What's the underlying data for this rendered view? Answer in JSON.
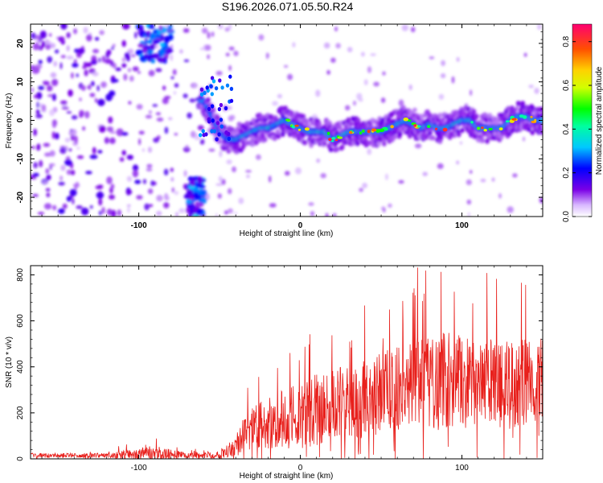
{
  "figure": {
    "title": "S196.2026.071.05.50.R24"
  },
  "chart_data": [
    {
      "type": "heatmap",
      "title": "S196.2026.071.05.50.R24",
      "xlabel": "Height of straight line (km)",
      "ylabel": "Frequency (Hz)",
      "xlim": [
        -167,
        150
      ],
      "ylim": [
        -25,
        25
      ],
      "xticks": [
        -100,
        0,
        100
      ],
      "yticks": [
        -20,
        -10,
        0,
        10,
        20
      ],
      "colorbar": {
        "label": "Normalized spectral amplitude",
        "range": [
          0.0,
          0.88
        ],
        "ticks": [
          0.0,
          0.2,
          0.4,
          0.6,
          0.8
        ]
      },
      "ridge": {
        "description": "frequency ridge (center of strong amplitude band)",
        "x": [
          -60,
          -55,
          -50,
          -45,
          -40,
          -35,
          -30,
          -25,
          -20,
          -15,
          -10,
          -5,
          0,
          5,
          10,
          15,
          20,
          25,
          30,
          35,
          40,
          45,
          50,
          55,
          60,
          65,
          70,
          75,
          80,
          85,
          90,
          95,
          100,
          105,
          110,
          115,
          120,
          125,
          130,
          135,
          140,
          145,
          150
        ],
        "freq": [
          5,
          1,
          -3,
          -5,
          -5,
          -4,
          -3,
          -2,
          -2,
          -1,
          0,
          -1,
          -2,
          -3,
          -3,
          -3,
          -5,
          -4,
          -3,
          -3,
          -3,
          -3,
          -3,
          -2,
          -1,
          0,
          -1,
          -2,
          -1,
          -2,
          -2,
          -1,
          0,
          0,
          -2,
          -2,
          -2,
          -2,
          0,
          1,
          1,
          0,
          0
        ]
      },
      "noise_regions": [
        {
          "x_range": [
            -167,
            -100
          ],
          "freq_range": [
            -25,
            25
          ],
          "level": "low-moderate"
        },
        {
          "x_range": [
            -100,
            -80
          ],
          "freq_range": [
            15,
            25
          ],
          "level": "moderate"
        },
        {
          "x_range": [
            -70,
            -60
          ],
          "freq_range": [
            -25,
            -15
          ],
          "level": "moderate"
        }
      ]
    },
    {
      "type": "line",
      "xlabel": "Height of straight line (km)",
      "ylabel": "SNR (10 * v/v)",
      "xlim": [
        -167,
        150
      ],
      "ylim": [
        0,
        840
      ],
      "xticks": [
        -100,
        0,
        100
      ],
      "yticks": [
        0,
        200,
        400,
        600,
        800
      ],
      "series": [
        {
          "name": "SNR",
          "color": "#e8201c",
          "envelope": {
            "x": [
              -167,
              -140,
              -120,
              -100,
              -90,
              -80,
              -70,
              -60,
              -50,
              -40,
              -35,
              -30,
              -20,
              -10,
              0,
              10,
              20,
              30,
              40,
              50,
              60,
              70,
              80,
              90,
              100,
              110,
              120,
              130,
              140,
              150
            ],
            "baseline": [
              15,
              15,
              15,
              20,
              25,
              20,
              15,
              15,
              20,
              60,
              100,
              130,
              150,
              170,
              190,
              210,
              230,
              250,
              270,
              290,
              320,
              340,
              330,
              350,
              330,
              320,
              330,
              320,
              330,
              330
            ],
            "amplitude": [
              10,
              10,
              10,
              25,
              35,
              20,
              12,
              12,
              20,
              50,
              80,
              100,
              120,
              130,
              150,
              160,
              160,
              170,
              180,
              190,
              200,
              190,
              210,
              220,
              200,
              190,
              200,
              190,
              190,
              200
            ]
          }
        }
      ]
    }
  ]
}
